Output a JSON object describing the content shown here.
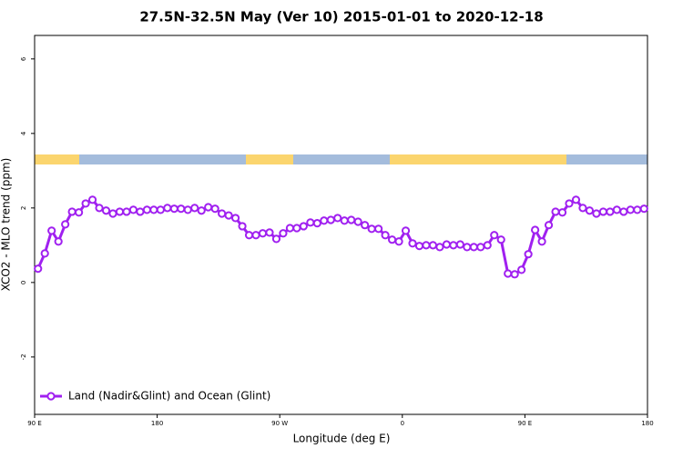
{
  "chart_data": {
    "type": "line",
    "title": "27.5N-32.5N May (Ver 10)   2015-01-01 to 2020-12-18",
    "x_label": "Longitude (deg E)",
    "y_label": "XCO2 - MLO trend (ppm)",
    "xlim": [
      90,
      540
    ],
    "ylim": [
      -3.54,
      6.63
    ],
    "xticks": [
      {
        "value": 90,
        "label": "90 E"
      },
      180,
      {
        "value": 270,
        "label": "90 W"
      },
      {
        "value": 360,
        "label": "0"
      },
      {
        "value": 450,
        "label": "90 E"
      },
      {
        "value": 540,
        "label": "180"
      }
    ],
    "yticks": [
      -2,
      0,
      2,
      4,
      6
    ],
    "legend": "bottom-left",
    "x": [
      92.5,
      97.5,
      102.5,
      107.5,
      112.5,
      117.5,
      122.5,
      127.5,
      132.5,
      137.5,
      142.5,
      147.5,
      152.5,
      157.5,
      162.5,
      167.5,
      172.5,
      177.5,
      182.5,
      187.5,
      192.5,
      197.5,
      202.5,
      207.5,
      212.5,
      217.5,
      222.5,
      227.5,
      232.5,
      237.5,
      242.5,
      247.5,
      252.5,
      257.5,
      262.5,
      267.5,
      272.5,
      277.5,
      282.5,
      287.5,
      292.5,
      297.5,
      302.5,
      307.5,
      312.5,
      317.5,
      322.5,
      327.5,
      332.5,
      337.5,
      342.5,
      347.5,
      352.5,
      357.5,
      362.5,
      367.5,
      372.5,
      377.5,
      382.5,
      387.5,
      392.5,
      397.5,
      402.5,
      407.5,
      412.5,
      417.5,
      422.5,
      427.5,
      432.5,
      437.5,
      442.5,
      447.5,
      452.5,
      457.5,
      462.5,
      467.5,
      472.5,
      477.5,
      482.5,
      487.5,
      492.5,
      497.5,
      502.5,
      507.5,
      512.5,
      517.5,
      522.5,
      527.5,
      532.5,
      537.5
    ],
    "series": [
      {
        "name": "Land (Nadir&Glint) and Ocean (Glint)",
        "color": "#a020f0",
        "values": [
          0.37,
          0.78,
          1.39,
          1.1,
          1.56,
          1.9,
          1.88,
          2.12,
          2.22,
          2.0,
          1.93,
          1.85,
          1.9,
          1.9,
          1.95,
          1.9,
          1.95,
          1.95,
          1.95,
          2.0,
          1.98,
          1.98,
          1.95,
          2.0,
          1.93,
          2.02,
          1.98,
          1.85,
          1.8,
          1.73,
          1.51,
          1.27,
          1.27,
          1.32,
          1.34,
          1.17,
          1.32,
          1.46,
          1.46,
          1.51,
          1.61,
          1.59,
          1.66,
          1.68,
          1.73,
          1.66,
          1.68,
          1.63,
          1.54,
          1.44,
          1.44,
          1.27,
          1.15,
          1.1,
          1.39,
          1.05,
          0.98,
          1.0,
          1.0,
          0.95,
          1.02,
          1.0,
          1.02,
          0.95,
          0.95,
          0.95,
          1.0,
          1.27,
          1.15,
          0.24,
          0.22,
          0.34,
          0.76,
          1.41,
          1.1,
          1.54,
          1.9,
          1.88,
          2.12,
          2.22,
          2.0,
          1.93,
          1.85,
          1.9,
          1.9,
          1.95,
          1.9,
          1.95,
          1.95,
          1.98
        ]
      }
    ]
  }
}
